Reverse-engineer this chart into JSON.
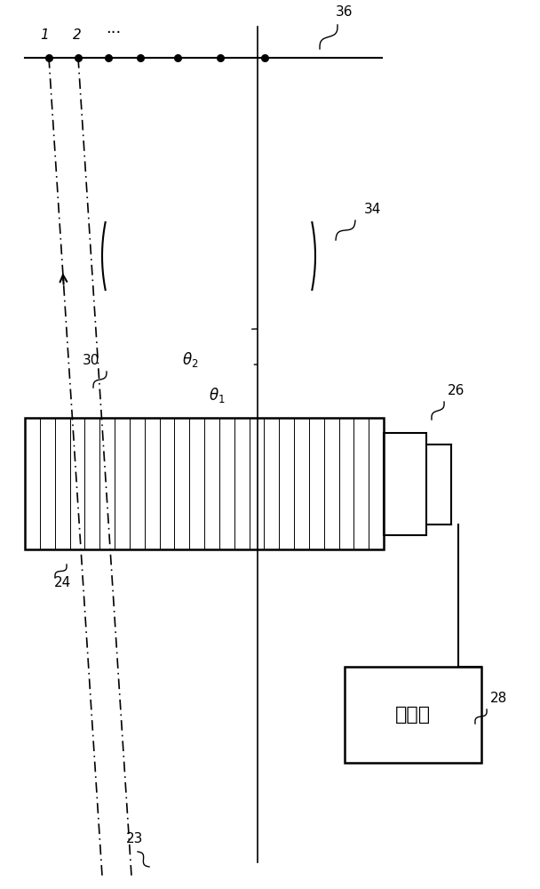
{
  "bg_color": "#ffffff",
  "line_color": "#000000",
  "fig_width": 6.08,
  "fig_height": 10.0,
  "dpi": 100,
  "labels": {
    "driver_text": "驱动器"
  }
}
